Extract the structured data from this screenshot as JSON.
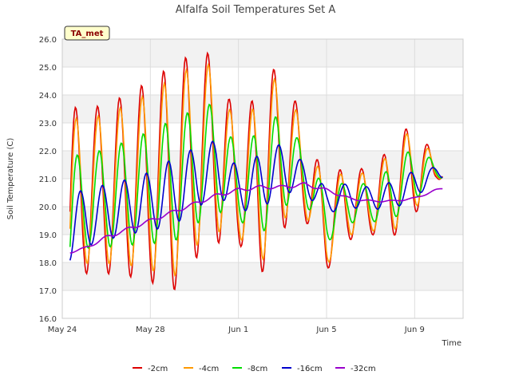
{
  "chart_data": {
    "type": "line",
    "title": "Alfalfa Soil Temperatures Set A",
    "xlabel": "Time",
    "ylabel": "Soil Temperature (C)",
    "tag": "TA_met",
    "ylim": [
      16.0,
      26.0
    ],
    "yticks": [
      "16.0",
      "17.0",
      "18.0",
      "19.0",
      "20.0",
      "21.0",
      "22.0",
      "23.0",
      "24.0",
      "25.0",
      "26.0"
    ],
    "xlim_days": [
      0,
      18.2
    ],
    "xticks": [
      {
        "day": 0,
        "label": "May 24"
      },
      {
        "day": 4,
        "label": "May 28"
      },
      {
        "day": 8,
        "label": "Jun 1"
      },
      {
        "day": 12,
        "label": "Jun 5"
      },
      {
        "day": 16,
        "label": "Jun 9"
      }
    ],
    "grid": true,
    "legend_position": "bottom",
    "series": [
      {
        "name": "-2cm",
        "color": "#dd0000",
        "phase": 0.6,
        "amplitude_factor": 1.0,
        "daily": [
          [
            19.4,
            4.1
          ],
          [
            20.6,
            3.0
          ],
          [
            20.6,
            3.0
          ],
          [
            20.8,
            3.3
          ],
          [
            20.9,
            3.6
          ],
          [
            21.0,
            4.1
          ],
          [
            21.8,
            3.7
          ],
          [
            22.1,
            3.4
          ],
          [
            20.7,
            2.0
          ],
          [
            21.0,
            3.5
          ],
          [
            22.2,
            3.0
          ],
          [
            21.2,
            1.6
          ],
          [
            19.3,
            1.6
          ],
          [
            20.2,
            1.4
          ],
          [
            20.1,
            1.1
          ],
          [
            20.6,
            1.7
          ],
          [
            21.4,
            1.7
          ],
          [
            21.3,
            0.3
          ],
          [
            21.0,
            0.2
          ]
        ]
      },
      {
        "name": "-4cm",
        "color": "#ff9900",
        "phase": 0.63,
        "amplitude_factor": 0.88,
        "daily": [
          [
            19.4,
            4.1
          ],
          [
            20.6,
            3.0
          ],
          [
            20.6,
            3.0
          ],
          [
            20.8,
            3.3
          ],
          [
            20.9,
            3.6
          ],
          [
            21.0,
            4.1
          ],
          [
            21.8,
            3.7
          ],
          [
            22.1,
            3.4
          ],
          [
            20.7,
            2.0
          ],
          [
            21.0,
            3.5
          ],
          [
            22.2,
            3.0
          ],
          [
            21.2,
            1.6
          ],
          [
            19.3,
            1.6
          ],
          [
            20.2,
            1.4
          ],
          [
            20.1,
            1.1
          ],
          [
            20.6,
            1.7
          ],
          [
            21.4,
            1.7
          ],
          [
            21.3,
            0.3
          ],
          [
            21.0,
            0.2
          ]
        ]
      },
      {
        "name": "-8cm",
        "color": "#00dd00",
        "phase": 0.68,
        "amplitude_factor": 0.65,
        "daily": [
          [
            19.3,
            3.8
          ],
          [
            20.2,
            2.6
          ],
          [
            20.3,
            2.7
          ],
          [
            20.5,
            2.9
          ],
          [
            20.7,
            3.1
          ],
          [
            20.9,
            3.4
          ],
          [
            21.4,
            3.2
          ],
          [
            21.8,
            3.0
          ],
          [
            20.7,
            1.8
          ],
          [
            20.9,
            3.0
          ],
          [
            21.7,
            2.6
          ],
          [
            21.1,
            1.4
          ],
          [
            19.6,
            1.4
          ],
          [
            20.2,
            1.2
          ],
          [
            20.1,
            1.0
          ],
          [
            20.5,
            1.5
          ],
          [
            21.2,
            1.5
          ],
          [
            21.3,
            0.4
          ],
          [
            21.1,
            0.2
          ]
        ]
      },
      {
        "name": "-16cm",
        "color": "#0000cc",
        "phase": 0.82,
        "amplitude_factor": 0.55,
        "daily": [
          [
            19.0,
            2.2
          ],
          [
            19.6,
            1.9
          ],
          [
            19.8,
            1.8
          ],
          [
            20.0,
            1.8
          ],
          [
            20.2,
            1.9
          ],
          [
            20.5,
            2.2
          ],
          [
            21.0,
            2.0
          ],
          [
            21.4,
            1.8
          ],
          [
            20.6,
            1.4
          ],
          [
            20.9,
            1.8
          ],
          [
            21.4,
            1.6
          ],
          [
            21.0,
            1.0
          ],
          [
            20.2,
            0.8
          ],
          [
            20.4,
            0.8
          ],
          [
            20.3,
            0.7
          ],
          [
            20.4,
            0.9
          ],
          [
            20.8,
            0.9
          ],
          [
            21.2,
            0.4
          ],
          [
            21.2,
            0.1
          ]
        ]
      },
      {
        "name": "-32cm",
        "color": "#9900cc",
        "phase": 0.95,
        "amplitude_factor": 0.15,
        "daily": [
          [
            18.3,
            0.2
          ],
          [
            18.5,
            0.3
          ],
          [
            18.9,
            0.4
          ],
          [
            19.2,
            0.4
          ],
          [
            19.5,
            0.4
          ],
          [
            19.8,
            0.4
          ],
          [
            20.1,
            0.4
          ],
          [
            20.4,
            0.4
          ],
          [
            20.6,
            0.4
          ],
          [
            20.7,
            0.4
          ],
          [
            20.7,
            0.4
          ],
          [
            20.8,
            0.4
          ],
          [
            20.6,
            0.3
          ],
          [
            20.3,
            0.3
          ],
          [
            20.2,
            0.2
          ],
          [
            20.2,
            0.2
          ],
          [
            20.3,
            0.2
          ],
          [
            20.6,
            0.2
          ],
          [
            20.8,
            0.1
          ]
        ]
      }
    ]
  }
}
